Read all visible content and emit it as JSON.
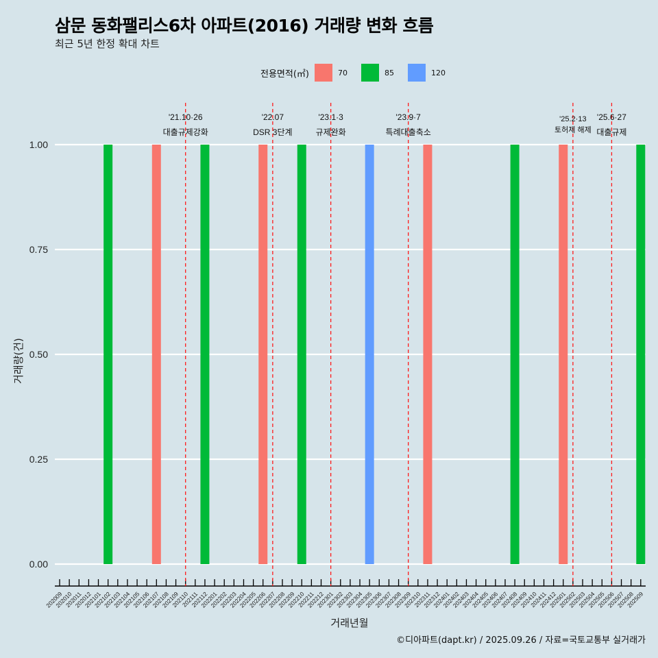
{
  "chart_data": {
    "type": "bar",
    "title": "삼문 동화팰리스6차 아파트(2016) 거래량 변화 흐름",
    "subtitle": "최근 5년 한정 확대 차트",
    "xlabel": "거래년월",
    "ylabel": "거래량(건)",
    "ylim": [
      0,
      1
    ],
    "yticks": [
      "0.00",
      "0.25",
      "0.50",
      "0.75",
      "1.00"
    ],
    "legend": {
      "title": "전용면적(㎡)",
      "position": "top",
      "entries": [
        {
          "name": "70",
          "color": "#f8766d"
        },
        {
          "name": "85",
          "color": "#00ba38"
        },
        {
          "name": "120",
          "color": "#619cff"
        }
      ]
    },
    "categories": [
      "202009",
      "202010",
      "202011",
      "202012",
      "202101",
      "202102",
      "202103",
      "202104",
      "202105",
      "202106",
      "202107",
      "202108",
      "202109",
      "202110",
      "202111",
      "202112",
      "202201",
      "202202",
      "202203",
      "202204",
      "202205",
      "202206",
      "202207",
      "202208",
      "202209",
      "202210",
      "202211",
      "202212",
      "202301",
      "202302",
      "202303",
      "202304",
      "202305",
      "202306",
      "202307",
      "202308",
      "202309",
      "202310",
      "202311",
      "202312",
      "202401",
      "202402",
      "202403",
      "202404",
      "202405",
      "202406",
      "202407",
      "202408",
      "202409",
      "202410",
      "202411",
      "202412",
      "202501",
      "202502",
      "202503",
      "202504",
      "202505",
      "202506",
      "202507",
      "202508",
      "202509"
    ],
    "bars": [
      {
        "month": "202102",
        "series": "85",
        "value": 1
      },
      {
        "month": "202107",
        "series": "70",
        "value": 1
      },
      {
        "month": "202112",
        "series": "85",
        "value": 1
      },
      {
        "month": "202206",
        "series": "70",
        "value": 1
      },
      {
        "month": "202210",
        "series": "85",
        "value": 1
      },
      {
        "month": "202305",
        "series": "120",
        "value": 1
      },
      {
        "month": "202311",
        "series": "70",
        "value": 1
      },
      {
        "month": "202408",
        "series": "85",
        "value": 1
      },
      {
        "month": "202501",
        "series": "70",
        "value": 1
      },
      {
        "month": "202509",
        "series": "85",
        "value": 1
      }
    ],
    "annotations": [
      {
        "month": "202110",
        "date": "'21.10·26",
        "text": "대출규제강화"
      },
      {
        "month": "202207",
        "date": "'22.07",
        "text": "DSR 3단계"
      },
      {
        "month": "202301",
        "date": "'23.1·3",
        "text": "규제완화"
      },
      {
        "month": "202309",
        "date": "'23.9·7",
        "text": "특례대출축소"
      },
      {
        "month": "202502",
        "date": "'25.2·13",
        "text": "토허제 해제"
      },
      {
        "month": "202506",
        "date": "'25.6·27",
        "text": "대출규제"
      }
    ]
  },
  "caption": "©디아파트(dapt.kr) / 2025.09.26 / 자료=국토교통부 실거래가"
}
